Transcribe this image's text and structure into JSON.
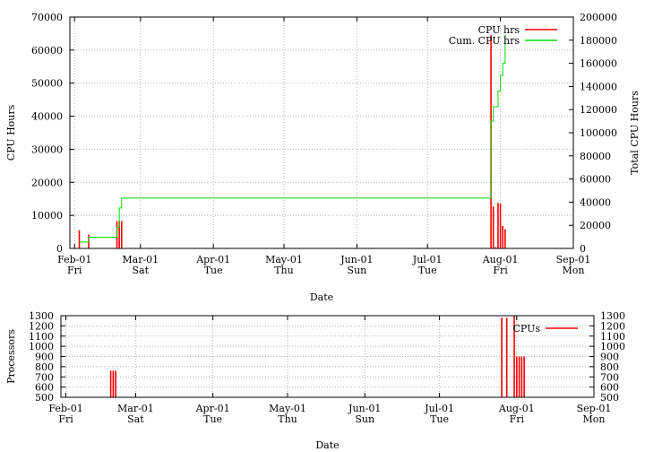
{
  "chart_data": [
    {
      "type": "line",
      "xlabel": "Date",
      "ylabel": "CPU Hours",
      "y2label": "Total CPU Hours",
      "ylim": [
        0,
        70000
      ],
      "y2lim": [
        0,
        200000
      ],
      "y_ticks": [
        "0",
        "10000",
        "20000",
        "30000",
        "40000",
        "50000",
        "60000",
        "70000"
      ],
      "y2_ticks": [
        "0",
        "20000",
        "40000",
        "60000",
        "80000",
        "100000",
        "120000",
        "140000",
        "160000",
        "180000",
        "200000"
      ],
      "x_ticks": [
        {
          "date": "2002-02-01",
          "label": "Feb-01",
          "day": "Fri"
        },
        {
          "date": "2002-03-01",
          "label": "Mar-01",
          "day": "Sat"
        },
        {
          "date": "2002-04-01",
          "label": "Apr-01",
          "day": "Tue"
        },
        {
          "date": "2002-05-01",
          "label": "May-01",
          "day": "Thu"
        },
        {
          "date": "2002-06-01",
          "label": "Jun-01",
          "day": "Sun"
        },
        {
          "date": "2002-07-01",
          "label": "Jul-01",
          "day": "Tue"
        },
        {
          "date": "2002-08-01",
          "label": "Aug-01",
          "day": "Fri"
        },
        {
          "date": "2002-09-01",
          "label": "Sep-01",
          "day": "Mon"
        }
      ],
      "xlim": [
        "2002-01-30",
        "2002-09-01"
      ],
      "grid": true,
      "legend_position": "top-right",
      "series": [
        {
          "name": "CPU hrs",
          "axis": "left",
          "color": "#ff0000",
          "style": "impulses",
          "points": [
            {
              "x": "2002-02-03",
              "y": 5500
            },
            {
              "x": "2002-02-07",
              "y": 4200
            },
            {
              "x": "2002-02-19",
              "y": 8300
            },
            {
              "x": "2002-02-20",
              "y": 8300
            },
            {
              "x": "2002-02-21",
              "y": 8300
            },
            {
              "x": "2002-07-28",
              "y": 64500
            },
            {
              "x": "2002-07-29",
              "y": 12700
            },
            {
              "x": "2002-07-30",
              "y": 400
            },
            {
              "x": "2002-07-31",
              "y": 13800
            },
            {
              "x": "2002-08-01",
              "y": 13500
            },
            {
              "x": "2002-08-02",
              "y": 6800
            },
            {
              "x": "2002-08-03",
              "y": 5800
            }
          ]
        },
        {
          "name": "Cum. CPU hrs",
          "axis": "right",
          "color": "#00dd00",
          "style": "steps",
          "points": [
            {
              "x": "2002-02-03",
              "y": 5500
            },
            {
              "x": "2002-02-07",
              "y": 9700
            },
            {
              "x": "2002-02-19",
              "y": 18000
            },
            {
              "x": "2002-02-20",
              "y": 35000
            },
            {
              "x": "2002-02-21",
              "y": 43500
            },
            {
              "x": "2002-07-28",
              "y": 110000
            },
            {
              "x": "2002-07-29",
              "y": 122500
            },
            {
              "x": "2002-07-31",
              "y": 136000
            },
            {
              "x": "2002-08-01",
              "y": 149500
            },
            {
              "x": "2002-08-02",
              "y": 160000
            },
            {
              "x": "2002-08-03",
              "y": 185000
            }
          ]
        }
      ]
    },
    {
      "type": "line",
      "xlabel": "Date",
      "ylabel": "Processors",
      "ylim": [
        500,
        1300
      ],
      "y2lim": [
        500,
        1300
      ],
      "y_ticks": [
        "500",
        "600",
        "700",
        "800",
        "900",
        "1000",
        "1100",
        "1200",
        "1300"
      ],
      "y2_ticks": [
        "500",
        "600",
        "700",
        "800",
        "900",
        "1000",
        "1100",
        "1200",
        "1300"
      ],
      "x_ticks": [
        {
          "date": "2002-02-01",
          "label": "Feb-01",
          "day": "Fri"
        },
        {
          "date": "2002-03-01",
          "label": "Mar-01",
          "day": "Sat"
        },
        {
          "date": "2002-04-01",
          "label": "Apr-01",
          "day": "Tue"
        },
        {
          "date": "2002-05-01",
          "label": "May-01",
          "day": "Thu"
        },
        {
          "date": "2002-06-01",
          "label": "Jun-01",
          "day": "Sun"
        },
        {
          "date": "2002-07-01",
          "label": "Jul-01",
          "day": "Tue"
        },
        {
          "date": "2002-08-01",
          "label": "Aug-01",
          "day": "Fri"
        },
        {
          "date": "2002-09-01",
          "label": "Sep-01",
          "day": "Mon"
        }
      ],
      "xlim": [
        "2002-01-30",
        "2002-09-01"
      ],
      "grid": true,
      "legend_position": "top-right",
      "series": [
        {
          "name": "CPUs",
          "axis": "left",
          "color": "#ff0000",
          "style": "impulses",
          "points": [
            {
              "x": "2002-02-19",
              "y": 760
            },
            {
              "x": "2002-02-20",
              "y": 760
            },
            {
              "x": "2002-02-21",
              "y": 760
            },
            {
              "x": "2002-07-26",
              "y": 1280
            },
            {
              "x": "2002-07-28",
              "y": 1280
            },
            {
              "x": "2002-07-31",
              "y": 1300
            },
            {
              "x": "2002-08-01",
              "y": 900
            },
            {
              "x": "2002-08-02",
              "y": 900
            },
            {
              "x": "2002-08-03",
              "y": 900
            },
            {
              "x": "2002-08-04",
              "y": 900
            }
          ]
        }
      ]
    }
  ]
}
